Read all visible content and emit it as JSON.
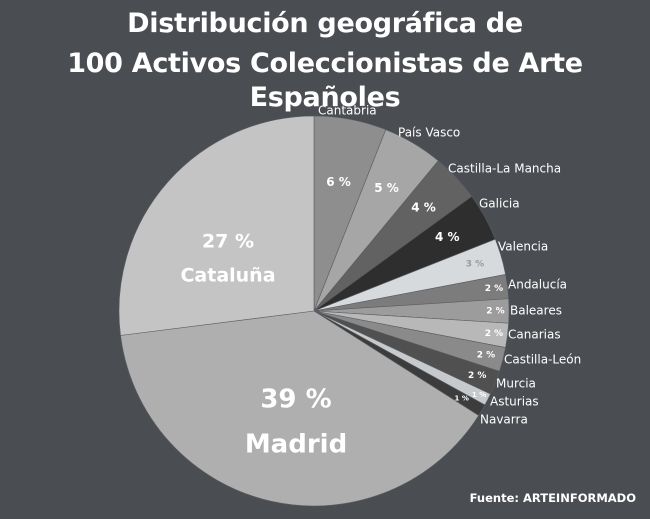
{
  "title_line1": "Distribución geográfica de",
  "title_line2": "100 Activos Coleccionistas de Arte Españoles",
  "source": "Fuente: ARTEINFORMADO",
  "chart_data": {
    "type": "pie",
    "title": "Distribución geográfica de 100 Activos Coleccionistas de Arte Españoles",
    "unit": "%",
    "start": "12 o'clock, clockwise from Cantabria",
    "slices": [
      {
        "name": "Cantabria",
        "value": 6,
        "label": "6 %",
        "color": "#8e8e8e"
      },
      {
        "name": "País Vasco",
        "value": 5,
        "label": "5 %",
        "color": "#a6a6a6"
      },
      {
        "name": "Castilla-La Mancha",
        "value": 4,
        "label": "4 %",
        "color": "#626262"
      },
      {
        "name": "Galicia",
        "value": 4,
        "label": "4 %",
        "color": "#2e2e2e"
      },
      {
        "name": "Valencia",
        "value": 3,
        "label": "3 %",
        "color": "#d7dadd"
      },
      {
        "name": "Andalucía",
        "value": 2,
        "label": "2 %",
        "color": "#7c7c7c"
      },
      {
        "name": "Baleares",
        "value": 2,
        "label": "2 %",
        "color": "#9c9c9c"
      },
      {
        "name": "Canarias",
        "value": 2,
        "label": "2 %",
        "color": "#b8b8b8"
      },
      {
        "name": "Castilla-León",
        "value": 2,
        "label": "2 %",
        "color": "#8a8a8a"
      },
      {
        "name": "Murcia",
        "value": 2,
        "label": "2 %",
        "color": "#505050"
      },
      {
        "name": "Asturias",
        "value": 1,
        "label": "1 %",
        "color": "#c6cacd"
      },
      {
        "name": "Navarra",
        "value": 1,
        "label": "1 %",
        "color": "#3c3c3c"
      },
      {
        "name": "Madrid",
        "value": 39,
        "label": "39 %",
        "color": "#afafaf"
      },
      {
        "name": "Cataluña",
        "value": 27,
        "label": "27 %",
        "color": "#c4c4c4"
      }
    ]
  }
}
